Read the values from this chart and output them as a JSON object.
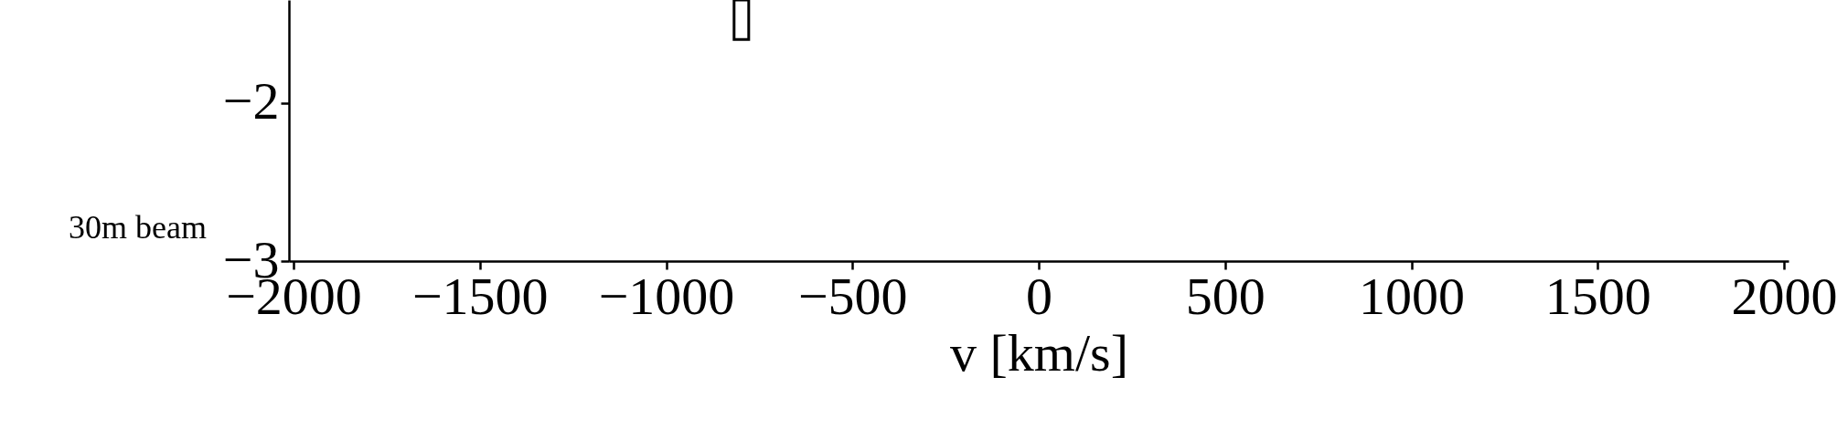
{
  "chart_data": {
    "type": "bar",
    "xlabel": "v [km/s]",
    "x": [
      -798
    ],
    "base": [
      -1.6
    ],
    "values": [
      0.25
    ],
    "color": "#000000",
    "xlim": [
      -2000,
      2000
    ],
    "xticks": [
      -2000,
      -1500,
      -1000,
      -500,
      0,
      500,
      1000,
      1500,
      2000
    ],
    "ylim": [
      -3,
      -1.35
    ],
    "yticks": [
      -3,
      -2
    ],
    "grid": false,
    "annotations": [
      "30m beam"
    ]
  }
}
